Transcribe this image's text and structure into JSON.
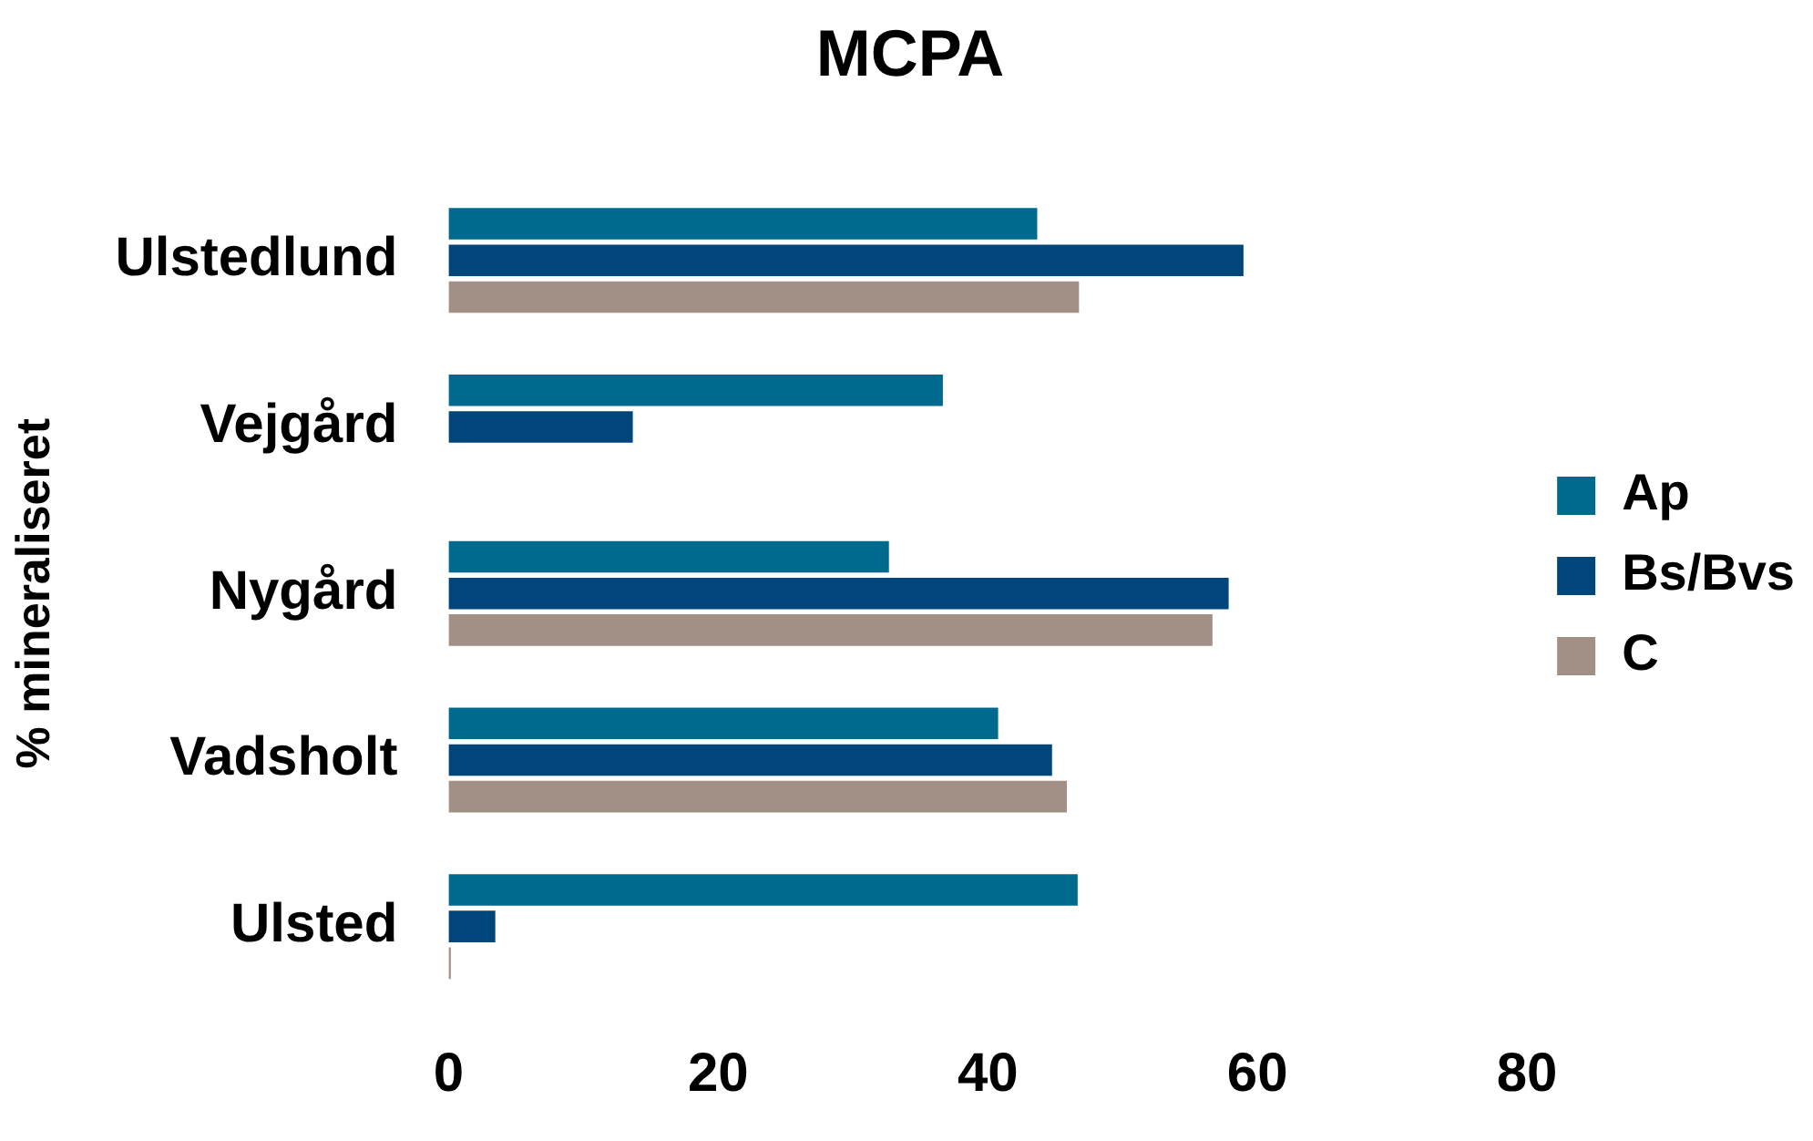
{
  "chart_data": {
    "type": "bar",
    "orientation": "horizontal",
    "title": "MCPA",
    "xlabel": null,
    "ylabel": "% mineraliseret",
    "categories": [
      "Ulstedlund",
      "Vejgård",
      "Nygård",
      "Vadsholt",
      "Ulsted"
    ],
    "series": [
      {
        "name": "Ap",
        "color": "#006a8e",
        "values": [
          43.8,
          36.8,
          32.8,
          40.9,
          46.8
        ]
      },
      {
        "name": "Bs/Bvs",
        "color": "#00467a",
        "values": [
          59.1,
          13.8,
          58.0,
          44.9,
          3.6
        ]
      },
      {
        "name": "C",
        "color": "#a29086",
        "values": [
          46.9,
          null,
          56.8,
          46.0,
          0.3
        ]
      }
    ],
    "xlim": [
      0,
      80
    ],
    "xticks": [
      0,
      20,
      40,
      60,
      80
    ],
    "grid": false,
    "legend": "right"
  }
}
